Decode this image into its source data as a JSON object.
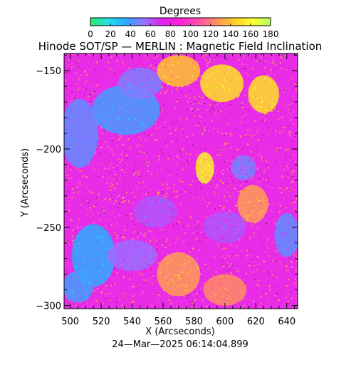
{
  "chart_data": {
    "type": "heatmap",
    "title": "Hinode SOT/SP — MERLIN : Magnetic Field Inclination",
    "colorbar": {
      "title": "Degrees",
      "ticks": [
        0,
        20,
        40,
        60,
        80,
        100,
        120,
        140,
        160,
        180
      ],
      "range": [
        0,
        180
      ],
      "colors": [
        "#2ce86a",
        "#20e0f0",
        "#2aa8ff",
        "#9a70ff",
        "#e020f0",
        "#ff20d8",
        "#ff50a8",
        "#ff9060",
        "#ffd020",
        "#ffff30",
        "#b0ff60"
      ]
    },
    "xlabel": "X (Arcseconds)",
    "ylabel": "Y (Arcseconds)",
    "xlim": [
      496,
      647
    ],
    "ylim": [
      -302,
      -139
    ],
    "xticks": [
      500,
      520,
      540,
      560,
      580,
      600,
      620,
      640
    ],
    "yticks": [
      -150,
      -200,
      -250,
      -300
    ],
    "timestamp": "24—Mar—2025 06:14:04.899",
    "regions": [
      {
        "label": "vertical-field-region",
        "x": 536,
        "y": -175,
        "rx": 22,
        "ry": 16,
        "value": 40
      },
      {
        "label": "vertical-field-region",
        "x": 506,
        "y": -190,
        "rx": 12,
        "ry": 22,
        "value": 45
      },
      {
        "label": "vertical-field-region",
        "x": 545,
        "y": -158,
        "rx": 14,
        "ry": 10,
        "value": 50
      },
      {
        "label": "vertical-field-region",
        "x": 515,
        "y": -268,
        "rx": 14,
        "ry": 20,
        "value": 35
      },
      {
        "label": "vertical-field-region",
        "x": 505,
        "y": -288,
        "rx": 10,
        "ry": 10,
        "value": 40
      },
      {
        "label": "vertical-field-region",
        "x": 540,
        "y": -268,
        "rx": 16,
        "ry": 10,
        "value": 55
      },
      {
        "label": "vertical-field-region",
        "x": 555,
        "y": -240,
        "rx": 14,
        "ry": 10,
        "value": 60
      },
      {
        "label": "vertical-field-region",
        "x": 600,
        "y": -250,
        "rx": 14,
        "ry": 10,
        "value": 60
      },
      {
        "label": "vertical-field-region",
        "x": 640,
        "y": -255,
        "rx": 8,
        "ry": 14,
        "value": 45
      },
      {
        "label": "vertical-field-region",
        "x": 612,
        "y": -212,
        "rx": 8,
        "ry": 8,
        "value": 50
      },
      {
        "label": "inclined-field-region",
        "x": 598,
        "y": -158,
        "rx": 14,
        "ry": 12,
        "value": 150
      },
      {
        "label": "inclined-field-region",
        "x": 570,
        "y": -150,
        "rx": 14,
        "ry": 10,
        "value": 140
      },
      {
        "label": "inclined-field-region",
        "x": 625,
        "y": -165,
        "rx": 10,
        "ry": 12,
        "value": 150
      },
      {
        "label": "inclined-field-region",
        "x": 587,
        "y": -212,
        "rx": 6,
        "ry": 10,
        "value": 155
      },
      {
        "label": "inclined-field-region",
        "x": 570,
        "y": -280,
        "rx": 14,
        "ry": 14,
        "value": 130
      },
      {
        "label": "inclined-field-region",
        "x": 600,
        "y": -290,
        "rx": 14,
        "ry": 10,
        "value": 125
      },
      {
        "label": "inclined-field-region",
        "x": 618,
        "y": -235,
        "rx": 10,
        "ry": 12,
        "value": 130
      }
    ]
  }
}
